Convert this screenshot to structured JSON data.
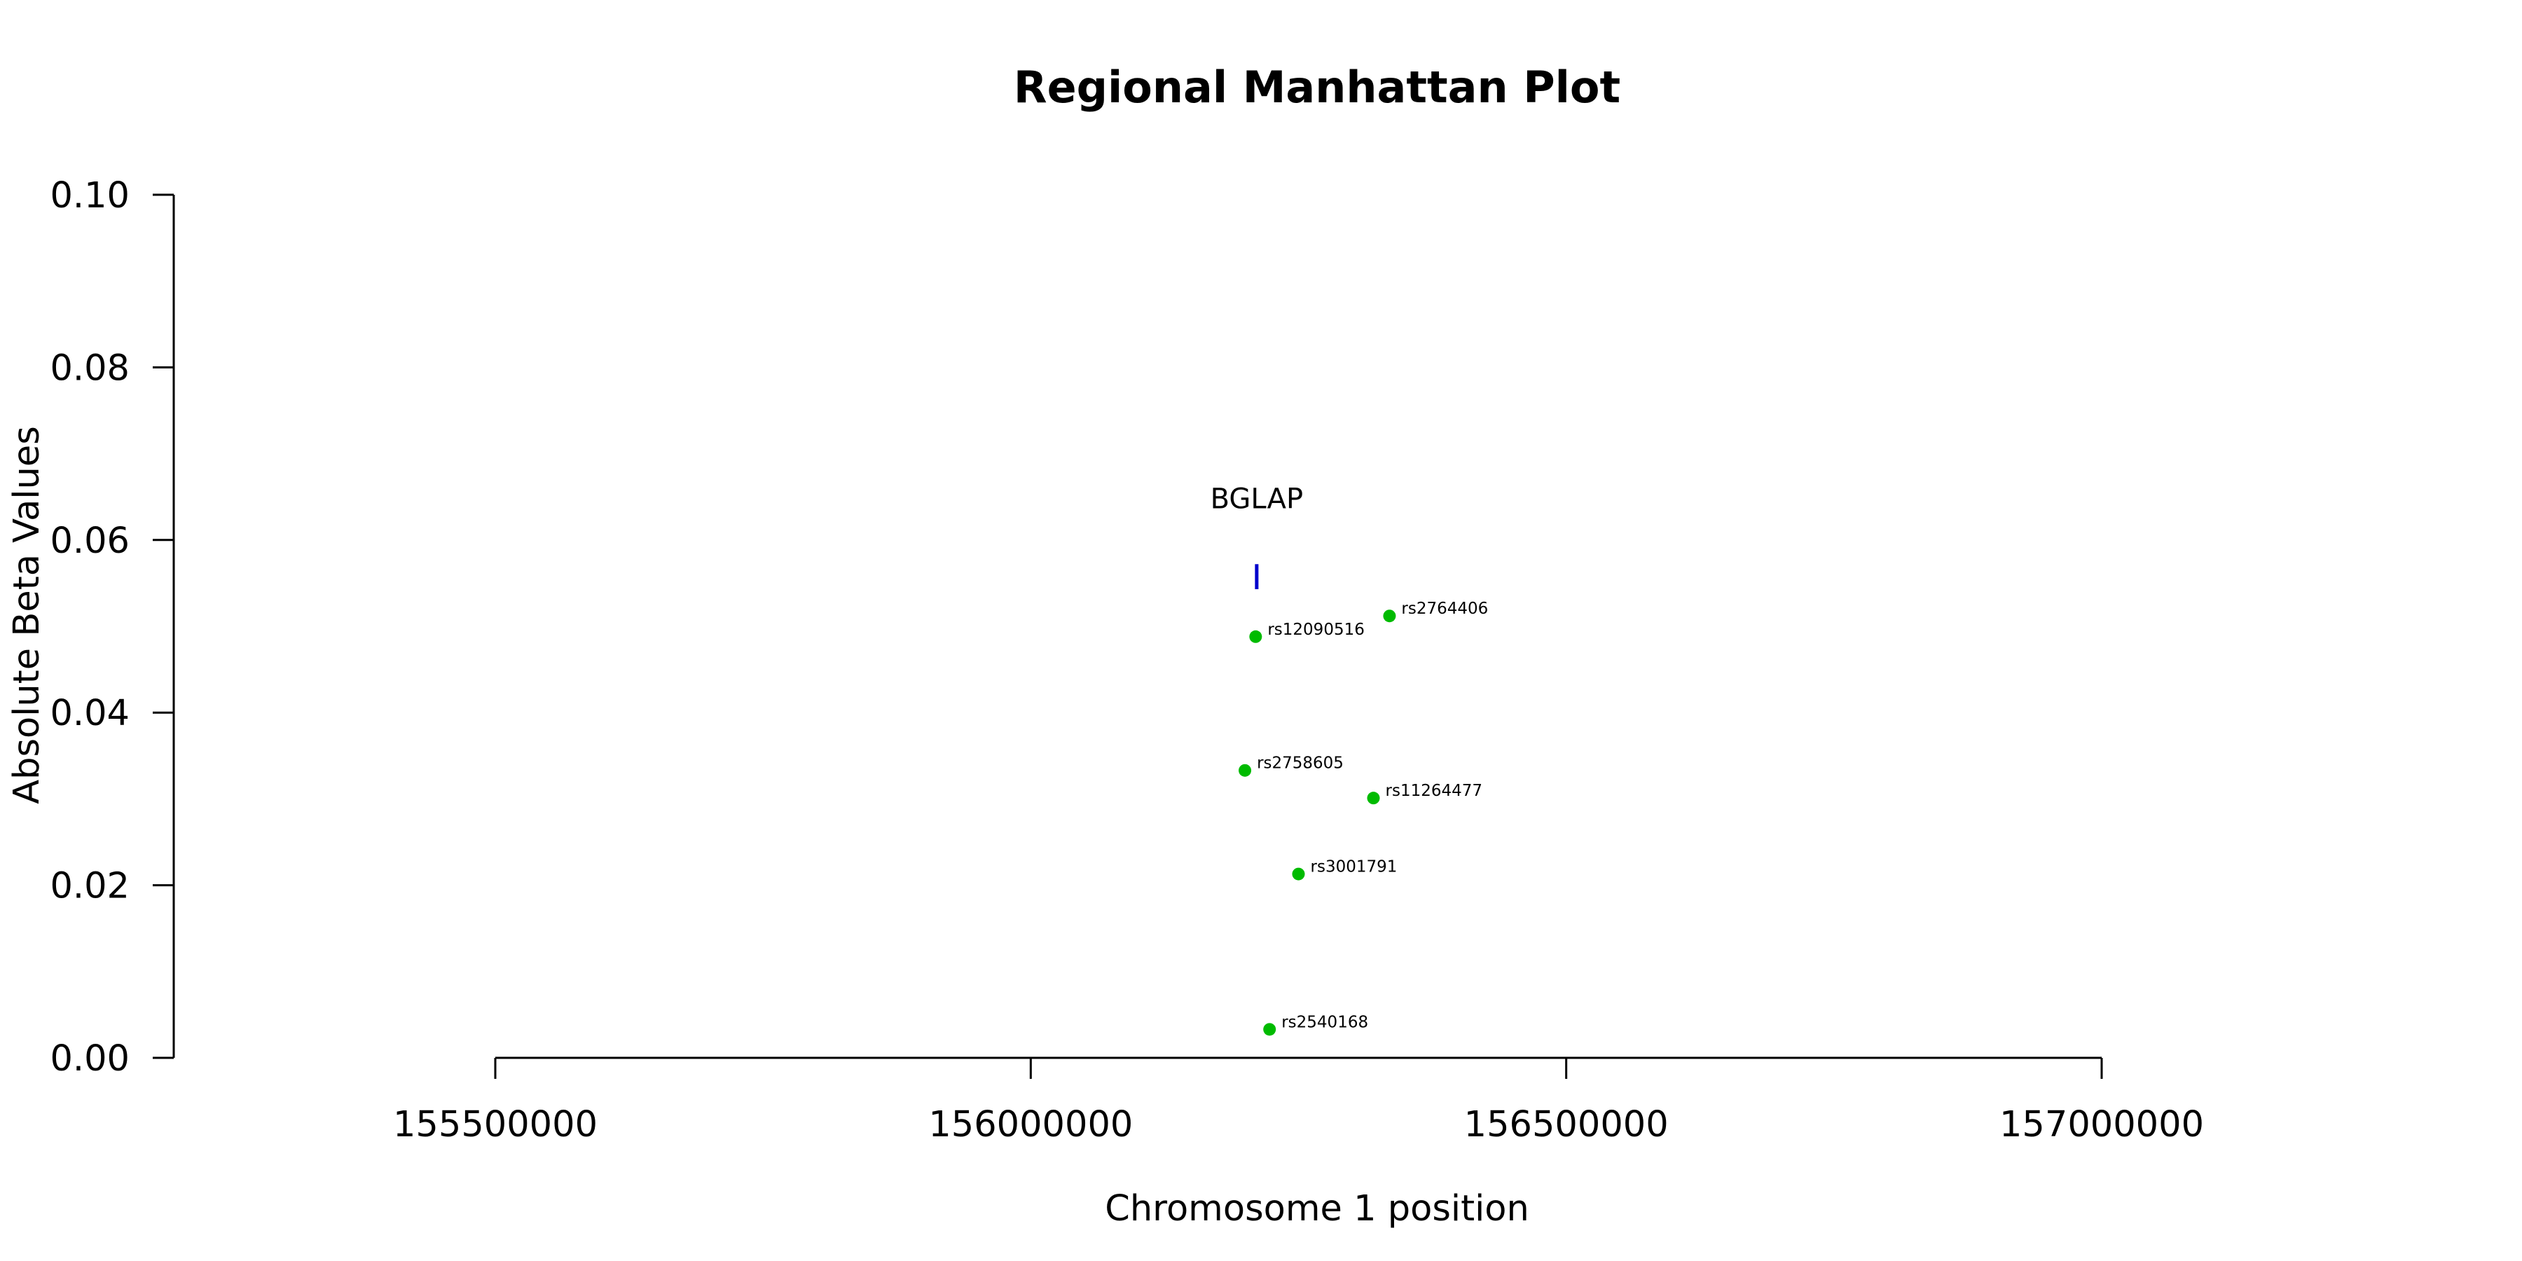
{
  "chart_data": {
    "type": "scatter",
    "title": "Regional Manhattan Plot",
    "xlabel": "Chromosome 1 position",
    "ylabel": "Absolute Beta Values",
    "xlim": [
      155500000,
      157000000
    ],
    "ylim": [
      0,
      0.1
    ],
    "x_ticks": [
      155500000,
      156000000,
      156500000,
      157000000
    ],
    "y_ticks": [
      0,
      0.02,
      0.04,
      0.06,
      0.08,
      0.1
    ],
    "y_tick_labels": [
      "0.00",
      "0.02",
      "0.04",
      "0.06",
      "0.08",
      "0.10"
    ],
    "point_color": "#00bb00",
    "points": [
      {
        "label": "rs2764406",
        "x": 156335000,
        "y": 0.0512
      },
      {
        "label": "rs12090516",
        "x": 156210000,
        "y": 0.0488
      },
      {
        "label": "rs2758605",
        "x": 156200000,
        "y": 0.0333
      },
      {
        "label": "rs11264477",
        "x": 156320000,
        "y": 0.0301
      },
      {
        "label": "rs3001791",
        "x": 156250000,
        "y": 0.0213
      },
      {
        "label": "rs2540168",
        "x": 156223000,
        "y": 0.0033
      }
    ],
    "genes": [
      {
        "name": "BGLAP",
        "x": 156211000,
        "y_low": 0.0543,
        "y_high": 0.0572,
        "color": "#0000cc"
      }
    ]
  }
}
